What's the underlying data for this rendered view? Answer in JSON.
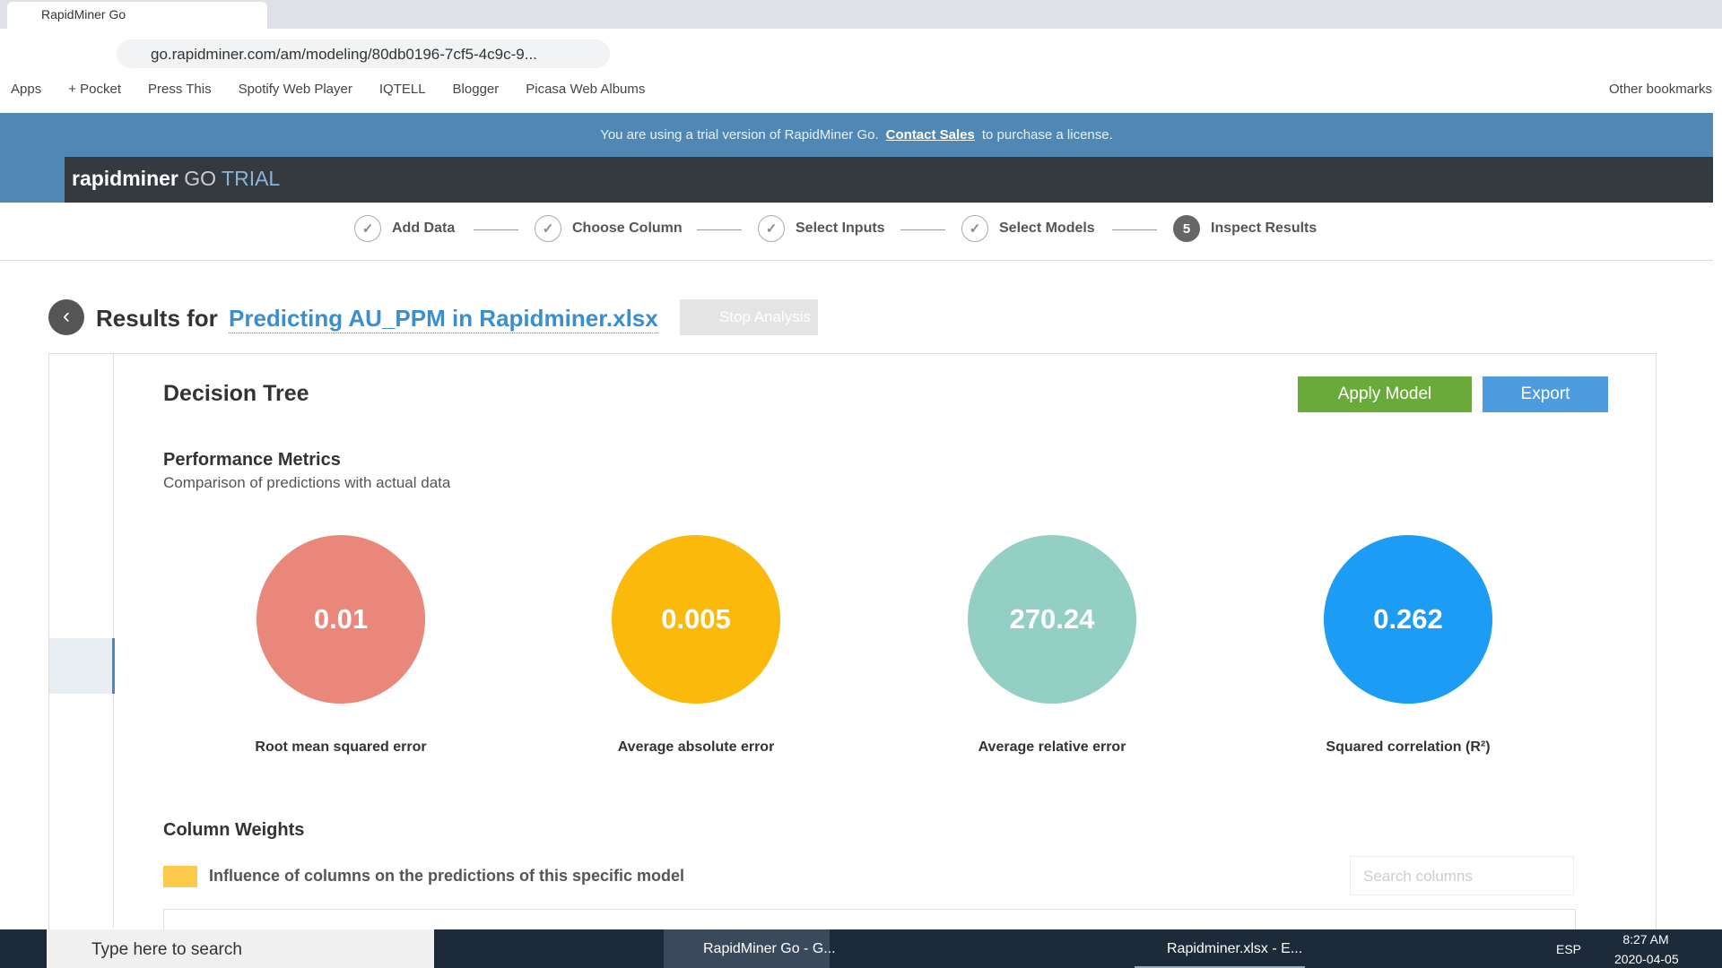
{
  "browser": {
    "tab_title": "RapidMiner Go",
    "url": "go.rapidminer.com/am/modeling/80db0196-7cf5-4c9c-9...",
    "bookmarks": [
      "Apps",
      "+ Pocket",
      "Press This",
      "Spotify Web Player",
      "IQTELL",
      "Blogger",
      "Picasa Web Albums"
    ],
    "other_bookmarks": "Other bookmarks"
  },
  "banner": {
    "before": "You are using a trial version of RapidMiner Go.",
    "link": "Contact Sales",
    "after": "to purchase a license."
  },
  "header": {
    "brand": "rapidminer",
    "product": "GO",
    "edition": "TRIAL"
  },
  "steps": [
    {
      "label": "Add Data"
    },
    {
      "label": "Choose Column"
    },
    {
      "label": "Select Inputs"
    },
    {
      "label": "Select Models"
    },
    {
      "number": "5",
      "label": "Inspect Results"
    }
  ],
  "results": {
    "prefix": "Results for",
    "name": "Predicting AU_PPM in Rapidminer.xlsx",
    "stop": "Stop Analysis"
  },
  "model": {
    "title": "Decision Tree",
    "apply": "Apply Model",
    "export": "Export"
  },
  "performance": {
    "title": "Performance Metrics",
    "subtitle": "Comparison of predictions with actual data",
    "metrics": [
      {
        "value": "0.01",
        "label": "Root mean squared error",
        "color": "#e8877a"
      },
      {
        "value": "0.005",
        "label": "Average absolute error",
        "color": "#fbb90b"
      },
      {
        "value": "270.24",
        "label": "Average relative error",
        "color": "#93cfc2"
      },
      {
        "value": "0.262",
        "label": "Squared correlation (R²)",
        "color": "#1c9cf4"
      }
    ]
  },
  "weights": {
    "title": "Column Weights",
    "legend": "Influence of columns on the predictions of this specific model",
    "search": "Search columns"
  },
  "taskbar": {
    "search": "Type here to search",
    "apps": [
      "RapidMiner Go - G...",
      "Rapidminer.xlsx - E..."
    ],
    "lang": "ESP",
    "time": "8:27 AM",
    "date": "2020-04-05"
  }
}
